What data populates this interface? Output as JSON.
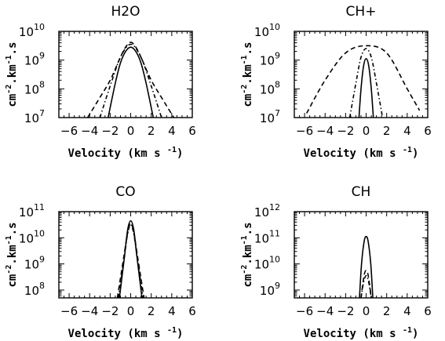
{
  "chart_data": [
    {
      "type": "line",
      "title": "H2O",
      "xlabel": "Velocity (km s",
      "xlabel_sup": "-1",
      "ylabel": "cm",
      "ylabel_sup1": "-2",
      "ylabel_mid": ".km",
      "ylabel_sup2": "-1",
      "ylabel_end": ".s",
      "xlim": [
        -7,
        6
      ],
      "ylim_log10": [
        7,
        10
      ],
      "xticks": [
        "−6",
        "−4",
        "−2",
        "0",
        "2",
        "4",
        "6"
      ],
      "xtick_values": [
        -6,
        -4,
        -2,
        0,
        2,
        4,
        6
      ],
      "yticks": [
        {
          "base": "10",
          "exp": "7",
          "value": 7
        },
        {
          "base": "10",
          "exp": "8",
          "value": 8
        },
        {
          "base": "10",
          "exp": "9",
          "value": 9
        },
        {
          "base": "10",
          "exp": "10",
          "value": 10
        }
      ],
      "series": [
        {
          "style": "solid",
          "peak_log10": 9.45,
          "center": 0.0,
          "x": [
            -2.2,
            -1.5,
            -1.0,
            -0.5,
            0.0,
            0.5,
            1.0,
            1.5,
            2.2
          ],
          "log10_y": [
            7.0,
            8.2,
            8.9,
            9.3,
            9.45,
            9.3,
            8.9,
            8.2,
            7.0
          ]
        },
        {
          "style": "dashed",
          "peak_log10": 9.62,
          "center": 0.0,
          "x": [
            -4.2,
            -3.0,
            -2.0,
            -1.0,
            -0.5,
            0.0,
            0.5,
            1.0,
            2.0,
            3.0,
            4.2
          ],
          "log10_y": [
            7.0,
            7.7,
            8.3,
            9.1,
            9.45,
            9.62,
            9.45,
            9.1,
            8.3,
            7.7,
            7.0
          ]
        },
        {
          "style": "dashdot",
          "peak_log10": 9.55,
          "center": 0.0,
          "x": [
            -3.0,
            -2.0,
            -1.0,
            0.0,
            1.0,
            2.0,
            3.0
          ],
          "log10_y": [
            7.0,
            8.1,
            9.1,
            9.55,
            9.1,
            8.1,
            7.0
          ]
        }
      ]
    },
    {
      "type": "line",
      "title": "CH+",
      "xlabel": "Velocity (km s",
      "xlabel_sup": "-1",
      "ylabel": "cm",
      "ylabel_sup1": "-2",
      "ylabel_mid": ".km",
      "ylabel_sup2": "-1",
      "ylabel_end": ".s",
      "xlim": [
        -7,
        6
      ],
      "ylim_log10": [
        7,
        10
      ],
      "xticks": [
        "−6",
        "−4",
        "−2",
        "0",
        "2",
        "4",
        "6"
      ],
      "xtick_values": [
        -6,
        -4,
        -2,
        0,
        2,
        4,
        6
      ],
      "yticks": [
        {
          "base": "10",
          "exp": "7",
          "value": 7
        },
        {
          "base": "10",
          "exp": "8",
          "value": 8
        },
        {
          "base": "10",
          "exp": "9",
          "value": 9
        },
        {
          "base": "10",
          "exp": "10",
          "value": 10
        }
      ],
      "series": [
        {
          "style": "solid",
          "peak_log10": 9.05,
          "center": 0.0,
          "x": [
            -0.7,
            -0.5,
            -0.25,
            0.0,
            0.25,
            0.5,
            0.7
          ],
          "log10_y": [
            7.0,
            8.0,
            8.8,
            9.05,
            8.8,
            8.0,
            7.0
          ]
        },
        {
          "style": "dashed",
          "peak_log10": 9.5,
          "center": 0.0,
          "x": [
            -5.8,
            -4.0,
            -2.0,
            0.0,
            2.0,
            4.0,
            5.2
          ],
          "log10_y": [
            7.15,
            8.3,
            9.25,
            9.5,
            9.25,
            8.0,
            7.25
          ]
        },
        {
          "style": "dashdot",
          "peak_log10": 9.4,
          "center": 0.0,
          "x": [
            -1.6,
            -1.0,
            -0.5,
            0.0,
            0.5,
            1.0,
            1.6
          ],
          "log10_y": [
            7.0,
            8.2,
            9.1,
            9.4,
            9.1,
            8.2,
            7.0
          ]
        }
      ]
    },
    {
      "type": "line",
      "title": "CO",
      "xlabel": "Velocity (km s",
      "xlabel_sup": "-1",
      "ylabel": "cm",
      "ylabel_sup1": "-2",
      "ylabel_mid": ".km",
      "ylabel_sup2": "-1",
      "ylabel_end": ".s",
      "xlim": [
        -7,
        6
      ],
      "ylim_log10": [
        7.7,
        11
      ],
      "xticks": [
        "−6",
        "−4",
        "−2",
        "0",
        "2",
        "4",
        "6"
      ],
      "xtick_values": [
        -6,
        -4,
        -2,
        0,
        2,
        4,
        6
      ],
      "yticks": [
        {
          "base": "10",
          "exp": "8",
          "value": 8
        },
        {
          "base": "10",
          "exp": "9",
          "value": 9
        },
        {
          "base": "10",
          "exp": "10",
          "value": 10
        },
        {
          "base": "10",
          "exp": "11",
          "value": 11
        }
      ],
      "series": [
        {
          "style": "solid",
          "peak_log10": 10.65,
          "center": 0.0,
          "x": [
            -1.1,
            -0.6,
            -0.3,
            0.0,
            0.3,
            0.6,
            1.1
          ],
          "log10_y": [
            7.7,
            9.3,
            10.3,
            10.65,
            10.3,
            9.3,
            7.7
          ]
        },
        {
          "style": "dashed",
          "peak_log10": 10.55,
          "center": 0.0,
          "x": [
            -1.3,
            -0.7,
            -0.3,
            0.0,
            0.3,
            0.7,
            1.3
          ],
          "log10_y": [
            7.7,
            9.2,
            10.2,
            10.55,
            10.2,
            9.2,
            7.7
          ]
        },
        {
          "style": "dashdot",
          "peak_log10": 10.5,
          "center": 0.0,
          "x": [
            -1.2,
            -0.65,
            -0.3,
            0.0,
            0.3,
            0.65,
            1.2
          ],
          "log10_y": [
            7.7,
            9.2,
            10.15,
            10.5,
            10.15,
            9.2,
            7.7
          ]
        }
      ]
    },
    {
      "type": "line",
      "title": "CH",
      "xlabel": "Velocity (km s",
      "xlabel_sup": "-1",
      "ylabel": "cm",
      "ylabel_sup1": "-2",
      "ylabel_mid": ".km",
      "ylabel_sup2": "-1",
      "ylabel_end": ".s",
      "xlim": [
        -7,
        6
      ],
      "ylim_log10": [
        8.7,
        12
      ],
      "xticks": [
        "−6",
        "−4",
        "−2",
        "0",
        "2",
        "4",
        "6"
      ],
      "xtick_values": [
        -6,
        -4,
        -2,
        0,
        2,
        4,
        6
      ],
      "yticks": [
        {
          "base": "10",
          "exp": "9",
          "value": 9
        },
        {
          "base": "10",
          "exp": "10",
          "value": 10
        },
        {
          "base": "10",
          "exp": "11",
          "value": 11
        },
        {
          "base": "10",
          "exp": "12",
          "value": 12
        }
      ],
      "series": [
        {
          "style": "solid",
          "peak_log10": 11.05,
          "center": 0.0,
          "x": [
            -0.65,
            -0.45,
            -0.2,
            0.0,
            0.2,
            0.45,
            0.65
          ],
          "log10_y": [
            8.7,
            10.0,
            10.85,
            11.05,
            10.85,
            10.0,
            8.7
          ]
        },
        {
          "style": "dashed",
          "peak_log10": 9.75,
          "center": 0.0,
          "x": [
            -0.5,
            -0.3,
            -0.15,
            0.0,
            0.15,
            0.3,
            0.5
          ],
          "log10_y": [
            8.7,
            9.3,
            9.65,
            9.75,
            9.65,
            9.3,
            8.7
          ]
        },
        {
          "style": "dashdot",
          "peak_log10": 9.55,
          "center": 0.0,
          "x": [
            -0.5,
            -0.3,
            -0.15,
            0.0,
            0.15,
            0.3,
            0.5
          ],
          "log10_y": [
            8.7,
            9.2,
            9.45,
            9.55,
            9.45,
            9.2,
            8.7
          ]
        }
      ]
    }
  ]
}
